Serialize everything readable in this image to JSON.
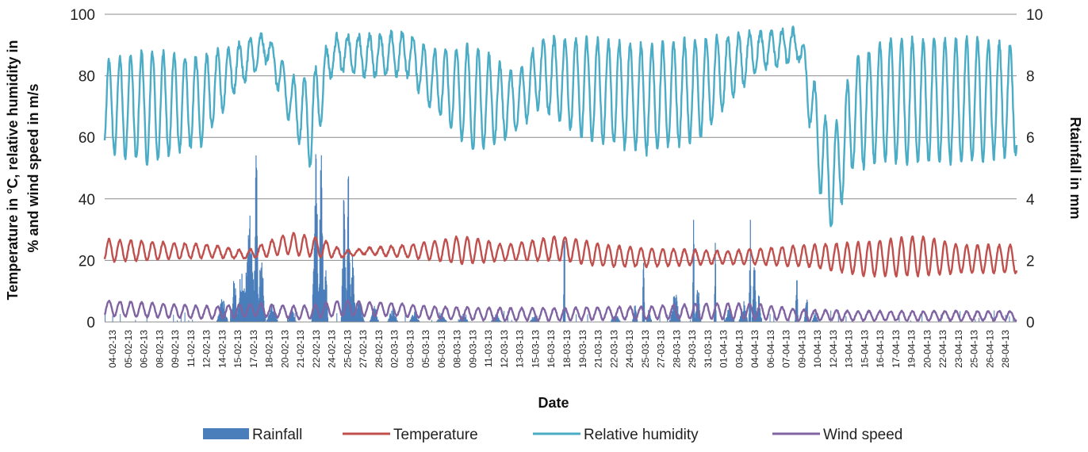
{
  "chart_data": {
    "type": "line",
    "xlabel": "Date",
    "ylabel_left": "Temperature in °C, relative humidity in % and wind speed in m/s",
    "ylabel_left_lines": [
      "Temperature in °C, relative humidity in",
      "% and wind speed in m/s"
    ],
    "ylabel_right": "Rtainfall in mm",
    "ylim_left": [
      0,
      100
    ],
    "ylim_right": [
      0,
      10
    ],
    "yticks_left": [
      "0",
      "20",
      "40",
      "60",
      "80",
      "100"
    ],
    "yticks_right": [
      "0",
      "2",
      "4",
      "6",
      "8",
      "10"
    ],
    "grid": true,
    "legend_position": "bottom",
    "x_tick_labels": [
      "04-02-13",
      "05-02-13",
      "06-02-13",
      "08-02-13",
      "09-02-13",
      "11-02-13",
      "12-02-13",
      "14-02-13",
      "15-02-13",
      "17-02-13",
      "18-02-13",
      "20-02-13",
      "21-02-13",
      "22-02-13",
      "24-02-13",
      "25-02-13",
      "27-02-13",
      "28-02-13",
      "02-03-13",
      "03-03-13",
      "05-03-13",
      "06-03-13",
      "08-03-13",
      "09-03-13",
      "11-03-13",
      "12-03-13",
      "13-03-13",
      "15-03-13",
      "16-03-13",
      "18-03-13",
      "19-03-13",
      "21-03-13",
      "22-03-13",
      "24-03-13",
      "25-03-13",
      "27-03-13",
      "28-03-13",
      "29-03-13",
      "31-03-13",
      "01-04-13",
      "03-04-13",
      "04-04-13",
      "06-04-13",
      "07-04-13",
      "09-04-13",
      "10-04-13",
      "12-04-13",
      "13-04-13",
      "15-04-13",
      "16-04-13",
      "17-04-13",
      "19-04-13",
      "20-04-13",
      "22-04-13",
      "23-04-13",
      "25-04-13",
      "26-04-13",
      "28-04-13"
    ],
    "x_range_days": [
      0,
      84
    ],
    "series": [
      {
        "name": "Rainfall",
        "kind": "bar",
        "axis": "right",
        "color": "#4a7ebb",
        "events": [
          [
            10.8,
            0.9,
            1.0
          ],
          [
            11.9,
            1.5,
            0.7
          ],
          [
            12.6,
            2.0,
            1.0
          ],
          [
            13.3,
            3.5,
            1.2
          ],
          [
            13.9,
            6.1,
            0.5
          ],
          [
            14.4,
            2.5,
            0.8
          ],
          [
            15.4,
            0.8,
            1.0
          ],
          [
            17.2,
            0.5,
            0.8
          ],
          [
            19.4,
            5.7,
            0.7
          ],
          [
            19.9,
            5.5,
            0.6
          ],
          [
            20.3,
            2.0,
            0.5
          ],
          [
            22.0,
            4.6,
            0.5
          ],
          [
            22.4,
            7.2,
            0.4
          ],
          [
            22.8,
            2.5,
            0.6
          ],
          [
            23.4,
            0.8,
            1.0
          ],
          [
            24.8,
            0.6,
            0.8
          ],
          [
            26.5,
            0.5,
            1.0
          ],
          [
            28.5,
            0.4,
            1.0
          ],
          [
            31.0,
            0.3,
            1.0
          ],
          [
            33.0,
            0.3,
            1.0
          ],
          [
            36.0,
            0.3,
            1.0
          ],
          [
            39.6,
            0.3,
            1.0
          ],
          [
            42.3,
            3.8,
            0.2
          ],
          [
            47.0,
            0.3,
            1.0
          ],
          [
            48.8,
            0.6,
            0.5
          ],
          [
            49.6,
            4.2,
            0.2
          ],
          [
            50.1,
            0.5,
            0.5
          ],
          [
            52.5,
            1.0,
            1.0
          ],
          [
            54.2,
            4.1,
            0.2
          ],
          [
            54.6,
            1.2,
            0.6
          ],
          [
            56.2,
            3.0,
            0.2
          ],
          [
            57.5,
            0.5,
            1.0
          ],
          [
            58.8,
            0.8,
            0.8
          ],
          [
            59.4,
            4.5,
            0.2
          ],
          [
            59.8,
            2.2,
            0.4
          ],
          [
            60.2,
            1.0,
            0.6
          ],
          [
            63.7,
            2.0,
            0.3
          ],
          [
            64.6,
            1.2,
            0.4
          ],
          [
            65.4,
            0.4,
            0.6
          ]
        ]
      },
      {
        "name": "Temperature",
        "kind": "line",
        "axis": "left",
        "color": "#c0504d"
      },
      {
        "name": "Relative humidity",
        "kind": "line",
        "axis": "left",
        "color": "#4bacc6"
      },
      {
        "name": "Wind speed",
        "kind": "line",
        "axis": "left",
        "color": "#8064a2"
      }
    ],
    "temperature_segments": [
      [
        0,
        19.5,
        27
      ],
      [
        10,
        21,
        25
      ],
      [
        13,
        20.5,
        23
      ],
      [
        17,
        22,
        29
      ],
      [
        20,
        21,
        27
      ],
      [
        22,
        21,
        23
      ],
      [
        24,
        22,
        24
      ],
      [
        28,
        21,
        25
      ],
      [
        33,
        19,
        28
      ],
      [
        37,
        20,
        25
      ],
      [
        42,
        20,
        28
      ],
      [
        46,
        18,
        25
      ],
      [
        50,
        18,
        24
      ],
      [
        57,
        19,
        23
      ],
      [
        65,
        18,
        25
      ],
      [
        70,
        15,
        26
      ],
      [
        75,
        15,
        28
      ],
      [
        79,
        16,
        25
      ],
      [
        84,
        16,
        25
      ]
    ],
    "humidity_segments": [
      [
        0,
        55,
        85
      ],
      [
        4,
        52,
        88
      ],
      [
        9,
        58,
        86
      ],
      [
        12,
        75,
        90
      ],
      [
        15,
        85,
        94
      ],
      [
        17,
        65,
        80
      ],
      [
        19,
        50,
        80
      ],
      [
        21,
        82,
        93
      ],
      [
        24,
        80,
        93
      ],
      [
        28,
        80,
        94
      ],
      [
        30,
        70,
        88
      ],
      [
        34,
        55,
        90
      ],
      [
        38,
        62,
        80
      ],
      [
        40,
        70,
        92
      ],
      [
        44,
        60,
        92
      ],
      [
        50,
        55,
        90
      ],
      [
        55,
        60,
        92
      ],
      [
        60,
        82,
        94
      ],
      [
        64,
        85,
        95
      ],
      [
        66,
        40,
        70
      ],
      [
        67,
        30,
        60
      ],
      [
        69,
        50,
        85
      ],
      [
        72,
        52,
        92
      ],
      [
        80,
        52,
        92
      ],
      [
        84,
        55,
        90
      ]
    ],
    "wind_segments": [
      [
        0,
        2,
        7
      ],
      [
        10,
        1,
        5
      ],
      [
        14,
        2,
        6
      ],
      [
        18,
        1,
        5
      ],
      [
        22,
        2,
        7
      ],
      [
        27,
        2,
        6
      ],
      [
        30,
        1,
        5
      ],
      [
        36,
        0.5,
        4.5
      ],
      [
        42,
        0.5,
        4.5
      ],
      [
        50,
        1,
        5
      ],
      [
        55,
        1,
        6
      ],
      [
        60,
        1,
        6
      ],
      [
        64,
        0.5,
        4
      ],
      [
        70,
        0.5,
        3.5
      ],
      [
        84,
        0.5,
        3.5
      ]
    ]
  },
  "legend": {
    "rainfall": "Rainfall",
    "temperature": "Temperature",
    "humidity": "Relative humidity",
    "wind": "Wind speed"
  }
}
